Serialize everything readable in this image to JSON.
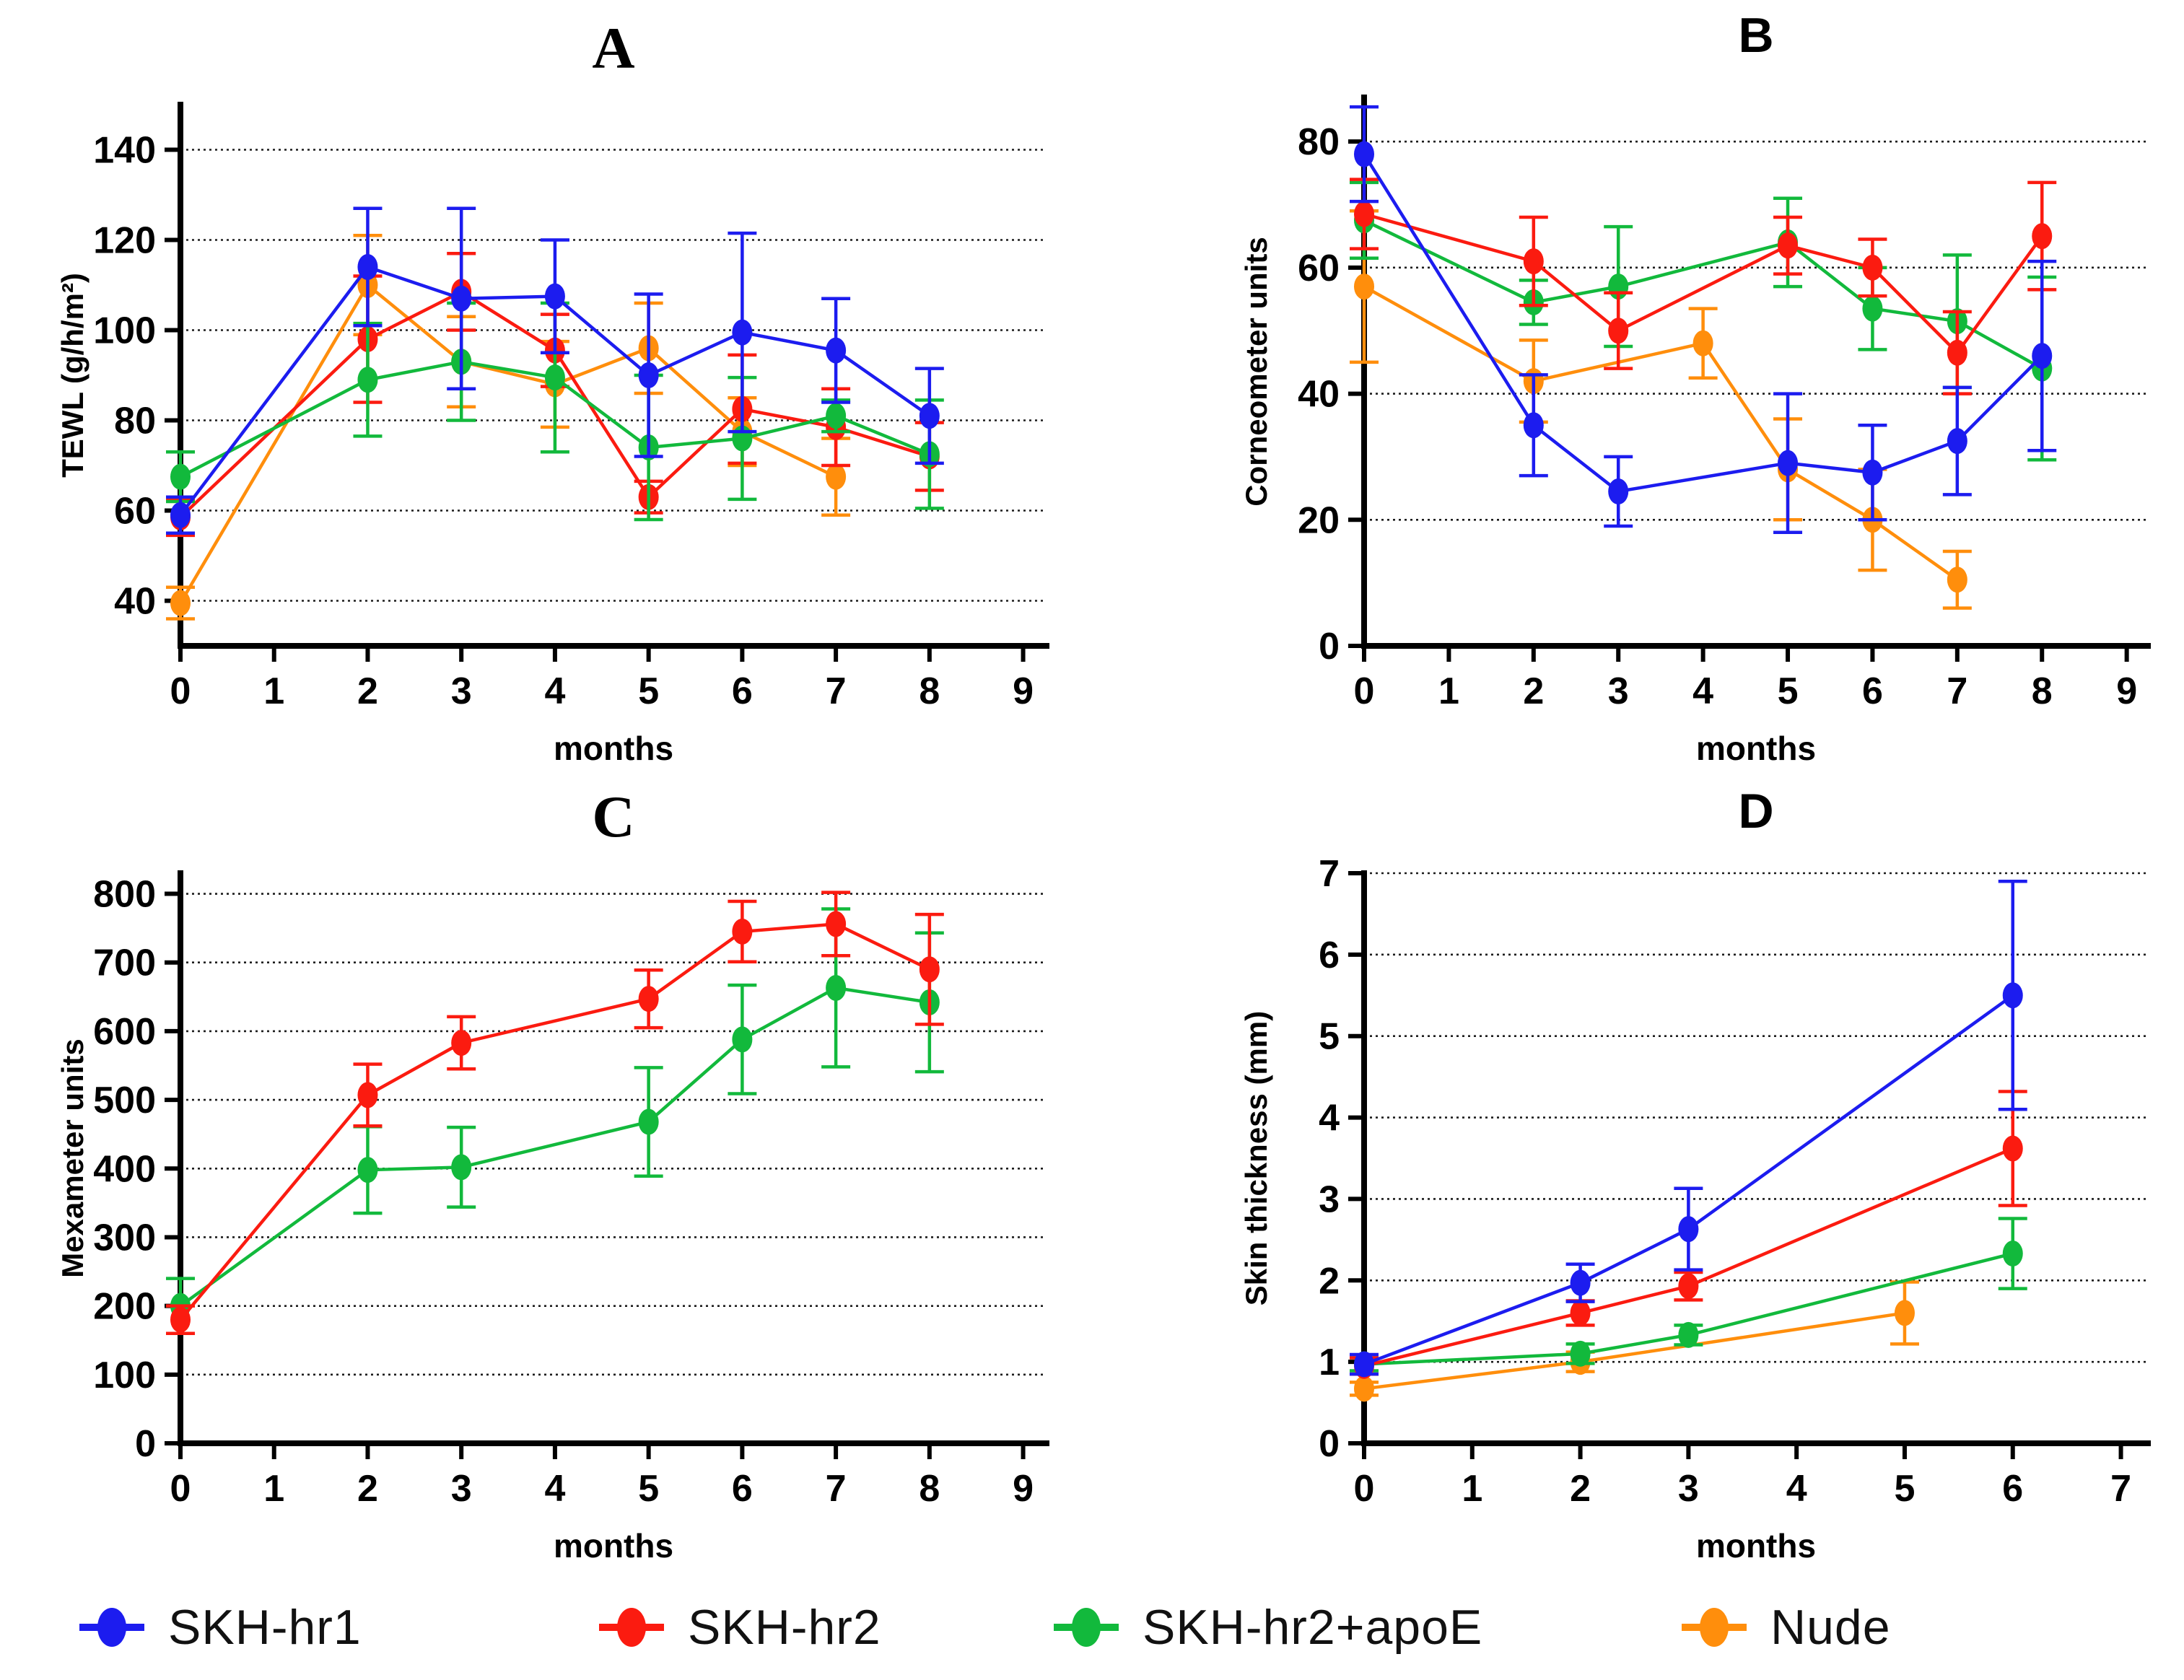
{
  "figure": {
    "background": "#ffffff"
  },
  "legend": {
    "items": [
      {
        "label": "SKH-hr1",
        "color": "#1c1cef"
      },
      {
        "label": "SKH-hr2",
        "color": "#fb1b10"
      },
      {
        "label": "SKH-hr2+apoE",
        "color": "#12b93c"
      },
      {
        "label": "Nude",
        "color": "#ff8e0c"
      }
    ]
  },
  "chart_data": [
    {
      "id": "A",
      "type": "line",
      "title": "A",
      "title_style": "serif",
      "xlabel": "months",
      "ylabel": "TEWL (g/h/m²)",
      "xlim": [
        0,
        9.25
      ],
      "ylim": [
        30,
        150
      ],
      "xticks": [
        0,
        1,
        2,
        3,
        4,
        5,
        6,
        7,
        8,
        9
      ],
      "yticks": [
        40,
        60,
        80,
        100,
        120,
        140
      ],
      "grid": "dotted-horizontal",
      "legend_position": "bottom-shared",
      "series": [
        {
          "name": "Nude",
          "color": "#ff8e0c",
          "x": [
            0,
            2,
            3,
            4,
            5,
            6,
            7
          ],
          "y": [
            39.5,
            110,
            93,
            88,
            96,
            77.5,
            67.5
          ],
          "err": [
            3.5,
            11,
            10,
            9.5,
            10,
            7.5,
            8.5
          ]
        },
        {
          "name": "SKH-hr2",
          "color": "#fb1b10",
          "x": [
            0,
            2,
            3,
            4,
            5,
            6,
            7,
            8
          ],
          "y": [
            58.5,
            98,
            108.5,
            95.5,
            63,
            82.5,
            78.5,
            72
          ],
          "err": [
            4,
            14,
            8.5,
            8,
            3.5,
            12,
            8.5,
            7.5
          ]
        },
        {
          "name": "SKH-hr2+apoE",
          "color": "#12b93c",
          "x": [
            0,
            2,
            3,
            4,
            5,
            6,
            7,
            8
          ],
          "y": [
            67.5,
            89,
            93,
            89.5,
            74,
            76,
            81,
            72.5
          ],
          "err": [
            5.5,
            12.5,
            13,
            16.5,
            16,
            13.5,
            3.5,
            12
          ]
        },
        {
          "name": "SKH-hr1",
          "color": "#1c1cef",
          "x": [
            0,
            2,
            3,
            4,
            5,
            6,
            7,
            8
          ],
          "y": [
            59,
            114,
            107,
            107.5,
            90,
            99.5,
            95.5,
            81
          ],
          "err": [
            4,
            13,
            20,
            12.5,
            18,
            22,
            11.5,
            10.5
          ]
        }
      ]
    },
    {
      "id": "B",
      "type": "line",
      "title": "B",
      "title_style": "sans",
      "xlabel": "months",
      "ylabel": "Corneometer units",
      "xlim": [
        0,
        9.25
      ],
      "ylim": [
        0,
        87
      ],
      "xticks": [
        0,
        1,
        2,
        3,
        4,
        5,
        6,
        7,
        8,
        9
      ],
      "yticks": [
        0,
        20,
        40,
        60,
        80
      ],
      "grid": "dotted-horizontal",
      "legend_position": "bottom-shared",
      "series": [
        {
          "name": "Nude",
          "color": "#ff8e0c",
          "x": [
            0,
            2,
            4,
            5,
            6,
            7
          ],
          "y": [
            57,
            42,
            48,
            28,
            20,
            10.5
          ],
          "err": [
            12,
            6.5,
            5.5,
            8,
            8,
            4.5
          ]
        },
        {
          "name": "SKH-hr2+apoE",
          "color": "#12b93c",
          "x": [
            0,
            2,
            3,
            5,
            6,
            7,
            8
          ],
          "y": [
            67.5,
            54.5,
            57,
            64,
            53.5,
            51.5,
            44
          ],
          "err": [
            6,
            3.5,
            9.5,
            7,
            6.5,
            10.5,
            14.5
          ]
        },
        {
          "name": "SKH-hr2",
          "color": "#fb1b10",
          "x": [
            0,
            2,
            3,
            5,
            6,
            7,
            8
          ],
          "y": [
            68.5,
            61,
            50,
            63.5,
            60,
            46.5,
            65
          ],
          "err": [
            5.5,
            7,
            6,
            4.5,
            4.5,
            6.5,
            8.5
          ]
        },
        {
          "name": "SKH-hr1",
          "color": "#1c1cef",
          "x": [
            0,
            2,
            3,
            5,
            6,
            7,
            8
          ],
          "y": [
            78,
            35,
            24.5,
            29,
            27.5,
            32.5,
            46
          ],
          "err": [
            7.5,
            8,
            5.5,
            11,
            7.5,
            8.5,
            15
          ]
        }
      ]
    },
    {
      "id": "C",
      "type": "line",
      "title": "C",
      "title_style": "serif",
      "xlabel": "months",
      "ylabel": "Mexameter units",
      "xlim": [
        0,
        9.25
      ],
      "ylim": [
        0,
        830
      ],
      "xticks": [
        0,
        1,
        2,
        3,
        4,
        5,
        6,
        7,
        8,
        9
      ],
      "yticks": [
        0,
        100,
        200,
        300,
        400,
        500,
        600,
        700,
        800
      ],
      "grid": "dotted-horizontal",
      "legend_position": "bottom-shared",
      "series": [
        {
          "name": "SKH-hr2+apoE",
          "color": "#12b93c",
          "x": [
            0,
            2,
            3,
            5,
            6,
            7,
            8
          ],
          "y": [
            200,
            398,
            402,
            468,
            588,
            663,
            642
          ],
          "err": [
            40,
            63,
            58,
            79,
            79,
            115,
            101
          ]
        },
        {
          "name": "SKH-hr2",
          "color": "#fb1b10",
          "x": [
            0,
            2,
            3,
            5,
            6,
            7,
            8
          ],
          "y": [
            180,
            507,
            583,
            647,
            745,
            756,
            690
          ],
          "err": [
            20,
            45,
            38,
            42,
            44,
            46,
            80
          ]
        }
      ]
    },
    {
      "id": "D",
      "type": "line",
      "title": "D",
      "title_style": "sans",
      "xlabel": "months",
      "ylabel": "Skin thickness (mm)",
      "xlim": [
        0,
        7.25
      ],
      "ylim": [
        0,
        7
      ],
      "xticks": [
        0,
        1,
        2,
        3,
        4,
        5,
        6,
        7
      ],
      "yticks": [
        0,
        1,
        2,
        3,
        4,
        5,
        6,
        7
      ],
      "grid": "dotted-horizontal",
      "legend_position": "bottom-shared",
      "series": [
        {
          "name": "Nude",
          "color": "#ff8e0c",
          "x": [
            0,
            2,
            5
          ],
          "y": [
            0.67,
            1.0,
            1.6
          ],
          "err": [
            0.08,
            0.12,
            0.38
          ]
        },
        {
          "name": "SKH-hr2+apoE",
          "color": "#12b93c",
          "x": [
            0,
            2,
            3,
            6
          ],
          "y": [
            0.97,
            1.1,
            1.33,
            2.33
          ],
          "err": [
            0.08,
            0.12,
            0.12,
            0.43
          ]
        },
        {
          "name": "SKH-hr2",
          "color": "#fb1b10",
          "x": [
            0,
            2,
            3,
            6
          ],
          "y": [
            0.95,
            1.6,
            1.93,
            3.62
          ],
          "err": [
            0.1,
            0.15,
            0.17,
            0.7
          ]
        },
        {
          "name": "SKH-hr1",
          "color": "#1c1cef",
          "x": [
            0,
            2,
            3,
            6
          ],
          "y": [
            0.97,
            1.97,
            2.63,
            5.5
          ],
          "err": [
            0.12,
            0.23,
            0.5,
            1.4
          ]
        }
      ]
    }
  ]
}
